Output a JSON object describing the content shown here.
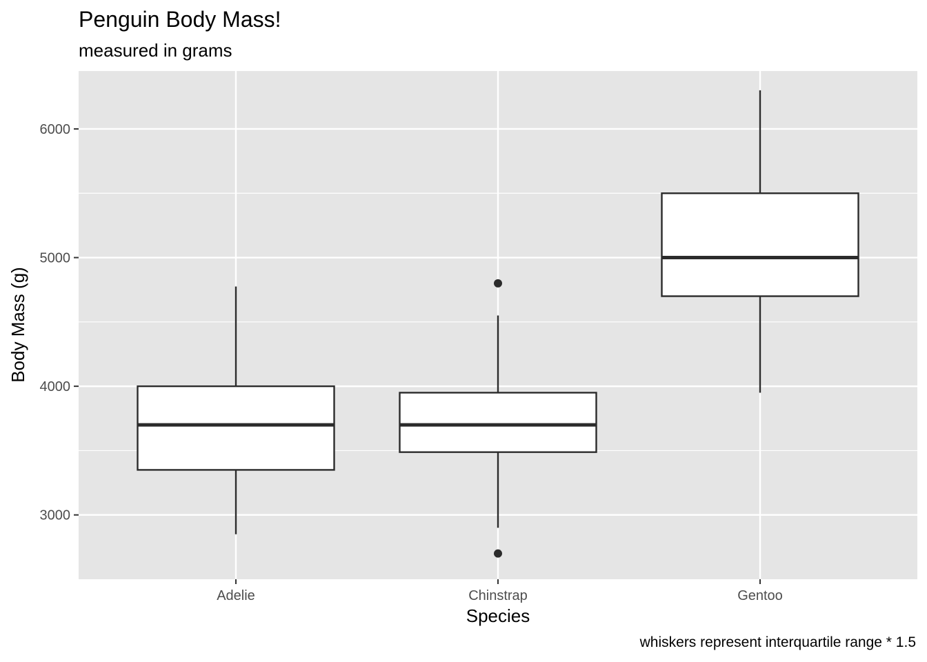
{
  "chart_data": {
    "type": "boxplot",
    "title": "Penguin Body Mass!",
    "subtitle": "measured in grams",
    "caption": "whiskers represent interquartile range * 1.5",
    "xlabel": "Species",
    "ylabel": "Body Mass (g)",
    "ylim": [
      2500,
      6450
    ],
    "yticks": [
      3000,
      4000,
      5000,
      6000
    ],
    "y_minor_ticks": [
      3500,
      4500,
      5500
    ],
    "grid": true,
    "panel_background": "#e5e5e5",
    "box_fill": "#ffffff",
    "box_stroke": "#2b2b2b",
    "categories": [
      "Adelie",
      "Chinstrap",
      "Gentoo"
    ],
    "boxes": [
      {
        "category": "Adelie",
        "whisker_low": 2850,
        "q1": 3350,
        "median": 3700,
        "q3": 4000,
        "whisker_high": 4775,
        "outliers": []
      },
      {
        "category": "Chinstrap",
        "whisker_low": 2900,
        "q1": 3488,
        "median": 3700,
        "q3": 3950,
        "whisker_high": 4550,
        "outliers": [
          4800,
          2700
        ]
      },
      {
        "category": "Gentoo",
        "whisker_low": 3950,
        "q1": 4700,
        "median": 5000,
        "q3": 5500,
        "whisker_high": 6300,
        "outliers": []
      }
    ]
  }
}
